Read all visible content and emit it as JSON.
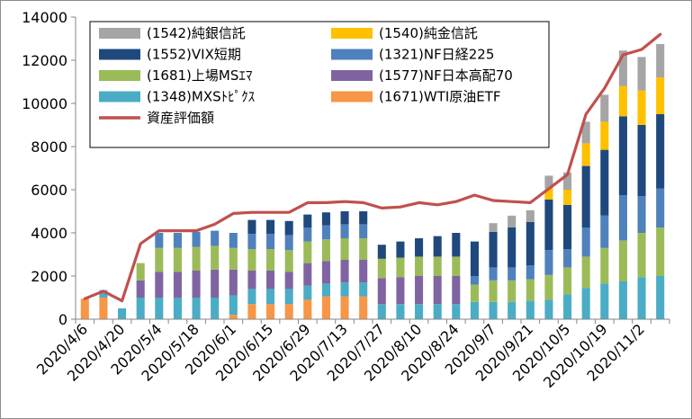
{
  "chart_data": {
    "type": "bar",
    "subtype": "stacked bar with line overlay",
    "y_ticks": [
      "0",
      "2000",
      "4000",
      "6000",
      "8000",
      "10000",
      "12000",
      "14000"
    ],
    "ylim": [
      0,
      14000
    ],
    "x_tick_labels": [
      "2020/4/6",
      "2020/4/20",
      "2020/5/4",
      "2020/5/18",
      "2020/6/1",
      "2020/6/15",
      "2020/6/29",
      "2020/7/13",
      "2020/7/27",
      "2020/8/10",
      "2020/8/24",
      "2020/9/7",
      "2020/9/21",
      "2020/10/5",
      "2020/10/19",
      "2020/11/2"
    ],
    "x_tick_every": 2,
    "categories": [
      "2020/4/6",
      "2020/4/13",
      "2020/4/20",
      "2020/4/27",
      "2020/5/4",
      "2020/5/11",
      "2020/5/18",
      "2020/5/25",
      "2020/6/1",
      "2020/6/8",
      "2020/6/15",
      "2020/6/22",
      "2020/6/29",
      "2020/7/6",
      "2020/7/13",
      "2020/7/20",
      "2020/7/27",
      "2020/8/3",
      "2020/8/10",
      "2020/8/17",
      "2020/8/24",
      "2020/8/31",
      "2020/9/7",
      "2020/9/14",
      "2020/9/21",
      "2020/9/28",
      "2020/10/5",
      "2020/10/12",
      "2020/10/19",
      "2020/10/26",
      "2020/11/2",
      "2020/11/9"
    ],
    "legend_position": "top-left inside plot",
    "grid": false,
    "series": [
      {
        "name": "(1671)WTI原油ETF",
        "color": "#F79646",
        "values": [
          950,
          1000,
          0,
          0,
          0,
          0,
          0,
          0,
          200,
          700,
          700,
          700,
          900,
          1050,
          1050,
          1050,
          0,
          0,
          0,
          0,
          0,
          0,
          0,
          0,
          0,
          0,
          0,
          0,
          0,
          0,
          0,
          0
        ]
      },
      {
        "name": "(1348)MXSﾄﾋﾟｸｽ",
        "color": "#4BACC6",
        "values": [
          0,
          350,
          500,
          1000,
          1000,
          1000,
          1000,
          1000,
          900,
          700,
          700,
          700,
          650,
          600,
          650,
          650,
          700,
          700,
          700,
          700,
          700,
          800,
          800,
          800,
          850,
          900,
          1150,
          1450,
          1650,
          1750,
          1950,
          2000
        ]
      },
      {
        "name": "(1577)NF日本高配70",
        "color": "#8064A2",
        "values": [
          0,
          0,
          0,
          800,
          1200,
          1200,
          1250,
          1300,
          1200,
          850,
          850,
          800,
          1050,
          1050,
          1050,
          1050,
          1200,
          1250,
          1300,
          1300,
          1300,
          0,
          0,
          0,
          0,
          0,
          0,
          0,
          0,
          0,
          0,
          0
        ]
      },
      {
        "name": "(1681)上場MSｴﾏ",
        "color": "#9BBB59",
        "values": [
          0,
          0,
          0,
          800,
          1100,
          1100,
          1100,
          1100,
          1000,
          1000,
          1000,
          1000,
          1000,
          1000,
          1000,
          1000,
          900,
          900,
          900,
          900,
          900,
          800,
          1000,
          1000,
          1000,
          1150,
          1250,
          1450,
          1650,
          1900,
          2050,
          2250
        ]
      },
      {
        "name": "(1321)NF日経225",
        "color": "#4F81BD",
        "values": [
          0,
          0,
          0,
          0,
          700,
          700,
          700,
          700,
          700,
          700,
          700,
          700,
          650,
          650,
          650,
          650,
          0,
          0,
          0,
          0,
          0,
          400,
          600,
          600,
          650,
          1150,
          850,
          1350,
          1500,
          2100,
          1700,
          1800
        ]
      },
      {
        "name": "(1552)VIX短期",
        "color": "#1F497D",
        "values": [
          0,
          0,
          0,
          0,
          0,
          0,
          0,
          0,
          0,
          650,
          650,
          650,
          600,
          600,
          600,
          600,
          650,
          750,
          850,
          950,
          1100,
          1600,
          1650,
          1850,
          2000,
          2350,
          2050,
          2850,
          3050,
          3650,
          3300,
          3450
        ]
      },
      {
        "name": "(1540)純金信託",
        "color": "#FFC000",
        "values": [
          0,
          0,
          0,
          0,
          0,
          0,
          0,
          0,
          0,
          0,
          0,
          0,
          0,
          0,
          0,
          0,
          0,
          0,
          0,
          0,
          0,
          0,
          0,
          0,
          0,
          500,
          700,
          1050,
          1300,
          1400,
          1600,
          1700
        ]
      },
      {
        "name": "(1542)純銀信託",
        "color": "#A5A5A5",
        "values": [
          0,
          0,
          0,
          0,
          0,
          0,
          0,
          0,
          0,
          0,
          0,
          0,
          0,
          0,
          0,
          0,
          0,
          0,
          0,
          0,
          0,
          0,
          400,
          550,
          550,
          600,
          800,
          1000,
          1250,
          1650,
          1550,
          1550
        ]
      }
    ],
    "line_series": {
      "name": "資産評価額",
      "color": "#C0504D",
      "values": [
        950,
        1300,
        850,
        3500,
        4100,
        4100,
        4100,
        4400,
        4900,
        4950,
        4950,
        4950,
        5400,
        5400,
        5450,
        5400,
        5150,
        5200,
        5400,
        5300,
        5450,
        5750,
        5500,
        5450,
        5400,
        6050,
        6700,
        9500,
        10700,
        12250,
        12500,
        13200
      ]
    },
    "legend_order": [
      "(1542)純銀信託",
      "(1540)純金信託",
      "(1552)VIX短期",
      "(1321)NF日経225",
      "(1681)上場MSｴﾏ",
      "(1577)NF日本高配70",
      "(1348)MXSﾄﾋﾟｸｽ",
      "(1671)WTI原油ETF",
      "資産評価額"
    ]
  }
}
